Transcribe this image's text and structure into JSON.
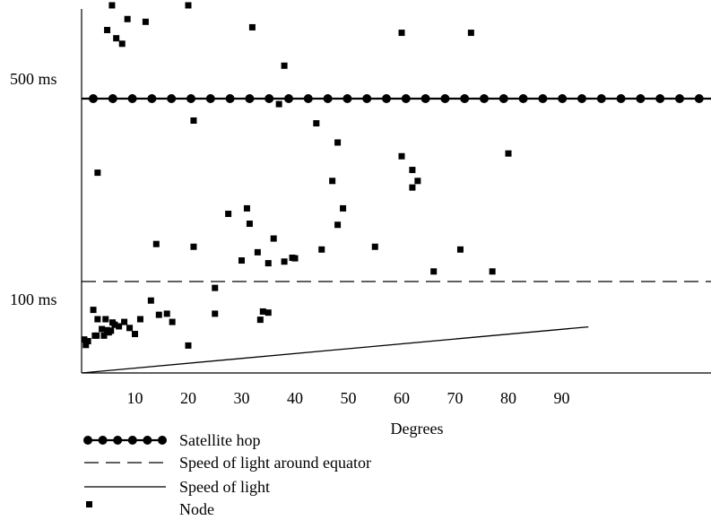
{
  "chart_data": {
    "type": "scatter",
    "xlabel": "Degrees",
    "ylabel": "",
    "x_ticks": [
      10,
      20,
      30,
      40,
      50,
      60,
      70,
      80,
      90
    ],
    "xlim": [
      0,
      95
    ],
    "y_tick_labels": [
      {
        "label": "500 ms",
        "value": 500
      },
      {
        "label": "100 ms",
        "value": 100
      }
    ],
    "reference_lines": [
      {
        "name": "Satellite hop",
        "style": "dots",
        "kind": "horizontal",
        "y": 500
      },
      {
        "name": "Speed of light around equator",
        "style": "dashed",
        "kind": "horizontal",
        "y": 134
      },
      {
        "name": "Speed of light",
        "style": "solid",
        "kind": "sloped",
        "from": [
          0,
          0
        ],
        "to": [
          95,
          84
        ]
      }
    ],
    "series": [
      {
        "name": "Node",
        "marker": "square",
        "points": [
          [
            5.7,
            670
          ],
          [
            4.8,
            625
          ],
          [
            6.5,
            610
          ],
          [
            7.6,
            600
          ],
          [
            8.6,
            645
          ],
          [
            12,
            640
          ],
          [
            20,
            670
          ],
          [
            32,
            630
          ],
          [
            38,
            560
          ],
          [
            43,
            690
          ],
          [
            60,
            620
          ],
          [
            73,
            620
          ],
          [
            37,
            490
          ],
          [
            48,
            420
          ],
          [
            44,
            455
          ],
          [
            21,
            460
          ],
          [
            3,
            365
          ],
          [
            60,
            395
          ],
          [
            62,
            370
          ],
          [
            63,
            350
          ],
          [
            62,
            338
          ],
          [
            80,
            400
          ],
          [
            14,
            235
          ],
          [
            21,
            230
          ],
          [
            27.5,
            290
          ],
          [
            30,
            205
          ],
          [
            31,
            300
          ],
          [
            31.5,
            272
          ],
          [
            33,
            220
          ],
          [
            35,
            200
          ],
          [
            36,
            245
          ],
          [
            45,
            225
          ],
          [
            48,
            270
          ],
          [
            47,
            350
          ],
          [
            49,
            300
          ],
          [
            55,
            230
          ],
          [
            66,
            185
          ],
          [
            71,
            225
          ],
          [
            77,
            185
          ],
          [
            25,
            155
          ],
          [
            13,
            132
          ],
          [
            14.5,
            106
          ],
          [
            25,
            108
          ],
          [
            33.5,
            97
          ],
          [
            34,
            112
          ],
          [
            35,
            110
          ],
          [
            38,
            203
          ],
          [
            40,
            209
          ],
          [
            39.5,
            210
          ],
          [
            0.5,
            61
          ],
          [
            0.8,
            51
          ],
          [
            1.2,
            58
          ],
          [
            2.5,
            68
          ],
          [
            2.8,
            68
          ],
          [
            4.2,
            68
          ],
          [
            3.8,
            80
          ],
          [
            5.5,
            77
          ],
          [
            4.5,
            98
          ],
          [
            4.8,
            78
          ],
          [
            5.1,
            74
          ],
          [
            5.8,
            92
          ],
          [
            6.2,
            88
          ],
          [
            2.2,
            115
          ],
          [
            3,
            98
          ],
          [
            11,
            98
          ],
          [
            9,
            82
          ],
          [
            7,
            85
          ],
          [
            8,
            93
          ],
          [
            16,
            108
          ],
          [
            17,
            93
          ],
          [
            10,
            71
          ],
          [
            20,
            50
          ]
        ]
      }
    ],
    "legend": {
      "placement": "bottom-left",
      "entries": [
        "Satellite hop",
        "Speed of light around equator",
        "Speed of light",
        "Node"
      ]
    }
  }
}
